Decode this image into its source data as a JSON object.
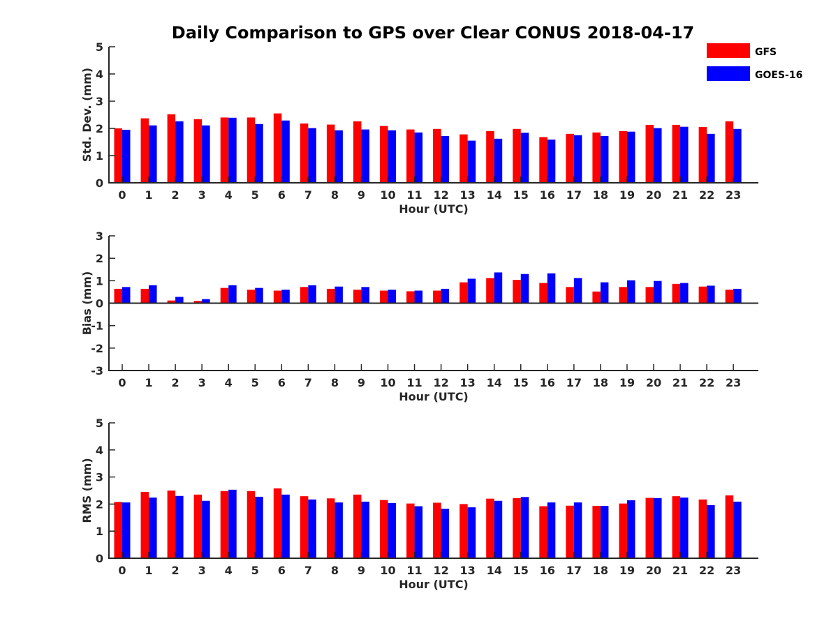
{
  "figure": {
    "title": "Daily Comparison to GPS over Clear CONUS 2018-04-17"
  },
  "legend": {
    "placement": "top-right",
    "items": [
      {
        "label": "GFS",
        "color": "#ff0000"
      },
      {
        "label": "GOES-16",
        "color": "#0000ff"
      }
    ]
  },
  "chart_data": [
    {
      "type": "bar",
      "title": "Daily Comparison to GPS over Clear CONUS 2018-04-17",
      "xlabel": "Hour (UTC)",
      "ylabel": "Std. Dev. (mm)",
      "ylim": [
        0,
        5
      ],
      "yticks": [
        0,
        1,
        2,
        3,
        4,
        5
      ],
      "categories": [
        "0",
        "1",
        "2",
        "3",
        "4",
        "5",
        "6",
        "7",
        "8",
        "9",
        "10",
        "11",
        "12",
        "13",
        "14",
        "15",
        "16",
        "17",
        "18",
        "19",
        "20",
        "21",
        "22",
        "23"
      ],
      "series": [
        {
          "name": "GFS",
          "color": "#ff0000",
          "values": [
            2.0,
            2.37,
            2.52,
            2.34,
            2.4,
            2.4,
            2.55,
            2.18,
            2.14,
            2.26,
            2.09,
            1.96,
            1.98,
            1.78,
            1.9,
            1.98,
            1.68,
            1.8,
            1.85,
            1.9,
            2.13,
            2.13,
            2.05,
            2.26
          ]
        },
        {
          "name": "GOES-16",
          "color": "#0000ff",
          "values": [
            1.95,
            2.11,
            2.26,
            2.11,
            2.39,
            2.16,
            2.29,
            2.01,
            1.93,
            1.96,
            1.93,
            1.85,
            1.72,
            1.55,
            1.62,
            1.84,
            1.59,
            1.75,
            1.72,
            1.88,
            2.01,
            2.06,
            1.8,
            1.98
          ]
        }
      ]
    },
    {
      "type": "bar",
      "xlabel": "Hour (UTC)",
      "ylabel": "Bias (mm)",
      "ylim": [
        -3,
        3
      ],
      "yticks": [
        -3,
        -2,
        -1,
        0,
        1,
        2,
        3
      ],
      "categories": [
        "0",
        "1",
        "2",
        "3",
        "4",
        "5",
        "6",
        "7",
        "8",
        "9",
        "10",
        "11",
        "12",
        "13",
        "14",
        "15",
        "16",
        "17",
        "18",
        "19",
        "20",
        "21",
        "22",
        "23"
      ],
      "series": [
        {
          "name": "GFS",
          "color": "#ff0000",
          "values": [
            0.64,
            0.64,
            0.12,
            0.1,
            0.68,
            0.6,
            0.56,
            0.72,
            0.64,
            0.6,
            0.56,
            0.53,
            0.56,
            0.93,
            1.12,
            1.04,
            0.9,
            0.72,
            0.52,
            0.72,
            0.72,
            0.86,
            0.74,
            0.6
          ]
        },
        {
          "name": "GOES-16",
          "color": "#0000ff",
          "values": [
            0.72,
            0.8,
            0.28,
            0.18,
            0.8,
            0.68,
            0.6,
            0.8,
            0.74,
            0.72,
            0.6,
            0.56,
            0.64,
            1.09,
            1.37,
            1.3,
            1.33,
            1.12,
            0.93,
            1.02,
            0.99,
            0.9,
            0.78,
            0.64
          ]
        }
      ]
    },
    {
      "type": "bar",
      "xlabel": "Hour (UTC)",
      "ylabel": "RMS (mm)",
      "ylim": [
        0,
        5
      ],
      "yticks": [
        0,
        1,
        2,
        3,
        4,
        5
      ],
      "categories": [
        "0",
        "1",
        "2",
        "3",
        "4",
        "5",
        "6",
        "7",
        "8",
        "9",
        "10",
        "11",
        "12",
        "13",
        "14",
        "15",
        "16",
        "17",
        "18",
        "19",
        "20",
        "21",
        "22",
        "23"
      ],
      "series": [
        {
          "name": "GFS",
          "color": "#ff0000",
          "values": [
            2.08,
            2.45,
            2.5,
            2.35,
            2.48,
            2.48,
            2.58,
            2.29,
            2.21,
            2.35,
            2.15,
            2.02,
            2.05,
            2.0,
            2.2,
            2.22,
            1.92,
            1.94,
            1.93,
            2.02,
            2.23,
            2.29,
            2.17,
            2.32
          ]
        },
        {
          "name": "GOES-16",
          "color": "#0000ff",
          "values": [
            2.06,
            2.24,
            2.3,
            2.12,
            2.53,
            2.27,
            2.35,
            2.17,
            2.06,
            2.09,
            2.04,
            1.92,
            1.83,
            1.88,
            2.12,
            2.26,
            2.06,
            2.06,
            1.93,
            2.14,
            2.22,
            2.24,
            1.96,
            2.09
          ]
        }
      ]
    }
  ]
}
